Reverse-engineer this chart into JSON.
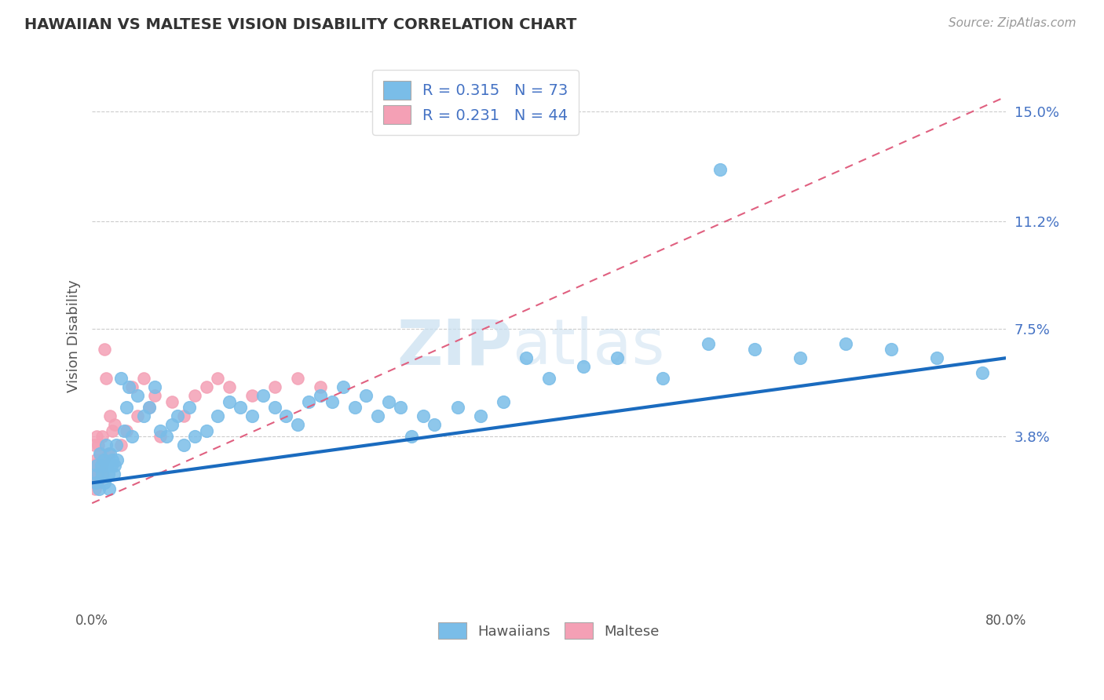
{
  "title": "HAWAIIAN VS MALTESE VISION DISABILITY CORRELATION CHART",
  "source": "Source: ZipAtlas.com",
  "ylabel": "Vision Disability",
  "xlim": [
    0.0,
    80.0
  ],
  "ylim": [
    -2.0,
    16.5
  ],
  "yticks": [
    3.8,
    7.5,
    11.2,
    15.0
  ],
  "xticks": [
    0.0,
    80.0
  ],
  "hawaiian_r": 0.315,
  "hawaiian_n": 73,
  "maltese_r": 0.231,
  "maltese_n": 44,
  "hawaiian_color": "#7abde8",
  "maltese_color": "#f4a0b5",
  "trend_hawaiian_color": "#1a6bbf",
  "trend_maltese_color": "#e06080",
  "watermark_zip": "ZIP",
  "watermark_atlas": "atlas",
  "background_color": "#ffffff",
  "hawaiian_x": [
    0.3,
    0.4,
    0.5,
    0.6,
    0.7,
    0.8,
    0.9,
    1.0,
    1.1,
    1.2,
    1.3,
    1.4,
    1.5,
    1.6,
    1.7,
    1.8,
    1.9,
    2.0,
    2.1,
    2.2,
    2.5,
    2.8,
    3.0,
    3.2,
    3.5,
    4.0,
    4.5,
    5.0,
    5.5,
    6.0,
    6.5,
    7.0,
    7.5,
    8.0,
    8.5,
    9.0,
    10.0,
    11.0,
    12.0,
    13.0,
    14.0,
    15.0,
    16.0,
    17.0,
    18.0,
    19.0,
    20.0,
    21.0,
    22.0,
    23.0,
    24.0,
    25.0,
    26.0,
    27.0,
    28.0,
    29.0,
    30.0,
    32.0,
    34.0,
    36.0,
    38.0,
    40.0,
    43.0,
    46.0,
    50.0,
    54.0,
    58.0,
    62.0,
    66.0,
    70.0,
    74.0,
    78.0,
    55.0
  ],
  "hawaiian_y": [
    2.2,
    2.8,
    2.5,
    2.0,
    3.2,
    2.8,
    2.5,
    3.0,
    2.2,
    3.5,
    2.8,
    2.5,
    2.0,
    3.2,
    2.8,
    3.0,
    2.5,
    2.8,
    3.5,
    3.0,
    5.8,
    4.0,
    4.8,
    5.5,
    3.8,
    5.2,
    4.5,
    4.8,
    5.5,
    4.0,
    3.8,
    4.2,
    4.5,
    3.5,
    4.8,
    3.8,
    4.0,
    4.5,
    5.0,
    4.8,
    4.5,
    5.2,
    4.8,
    4.5,
    4.2,
    5.0,
    5.2,
    5.0,
    5.5,
    4.8,
    5.2,
    4.5,
    5.0,
    4.8,
    3.8,
    4.5,
    4.2,
    4.8,
    4.5,
    5.0,
    6.5,
    5.8,
    6.2,
    6.5,
    5.8,
    7.0,
    6.8,
    6.5,
    7.0,
    6.8,
    6.5,
    6.0,
    13.0
  ],
  "maltese_x": [
    0.05,
    0.1,
    0.15,
    0.2,
    0.25,
    0.3,
    0.35,
    0.4,
    0.45,
    0.5,
    0.55,
    0.6,
    0.65,
    0.7,
    0.75,
    0.8,
    0.85,
    0.9,
    0.95,
    1.0,
    1.1,
    1.2,
    1.4,
    1.6,
    1.8,
    2.0,
    2.5,
    3.0,
    3.5,
    4.0,
    4.5,
    5.0,
    5.5,
    6.0,
    7.0,
    8.0,
    9.0,
    10.0,
    11.0,
    12.0,
    14.0,
    16.0,
    18.0,
    20.0
  ],
  "maltese_y": [
    2.5,
    2.8,
    2.2,
    3.5,
    2.0,
    3.0,
    2.5,
    3.8,
    2.2,
    2.8,
    3.5,
    2.5,
    3.0,
    2.8,
    3.2,
    2.5,
    3.8,
    2.8,
    2.5,
    3.0,
    6.8,
    5.8,
    3.2,
    4.5,
    4.0,
    4.2,
    3.5,
    4.0,
    5.5,
    4.5,
    5.8,
    4.8,
    5.2,
    3.8,
    5.0,
    4.5,
    5.2,
    5.5,
    5.8,
    5.5,
    5.2,
    5.5,
    5.8,
    5.5
  ],
  "maltese_trend_start_x": 0.0,
  "maltese_trend_start_y": 1.5,
  "maltese_trend_end_x": 80.0,
  "maltese_trend_end_y": 15.5,
  "hawaiian_trend_start_x": 0.0,
  "hawaiian_trend_start_y": 2.2,
  "hawaiian_trend_end_x": 80.0,
  "hawaiian_trend_end_y": 6.5
}
